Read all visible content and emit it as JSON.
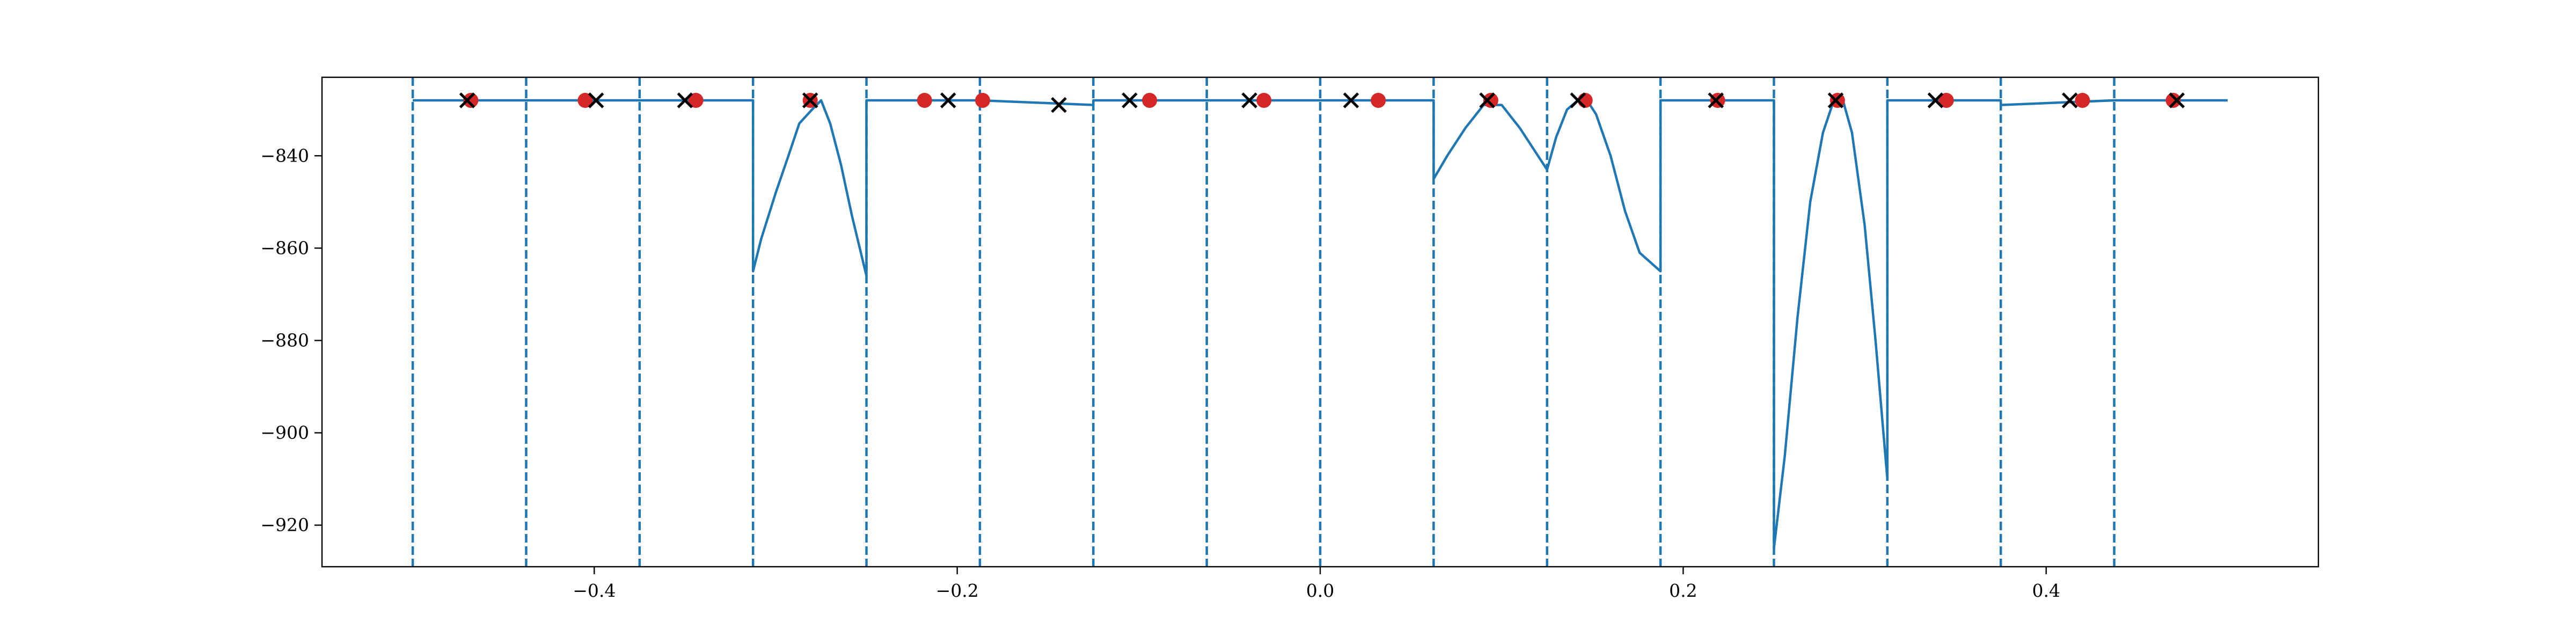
{
  "chart_data": {
    "type": "line",
    "title": "",
    "xlabel": "",
    "ylabel": "",
    "xlim": [
      -0.55,
      0.55
    ],
    "ylim": [
      -929,
      -823
    ],
    "grid": false,
    "xticks": [
      -0.4,
      -0.2,
      0.0,
      0.2,
      0.4
    ],
    "xtick_labels": [
      "−0.4",
      "−0.2",
      "0.0",
      "0.2",
      "0.4"
    ],
    "yticks": [
      -840,
      -860,
      -880,
      -900,
      -920
    ],
    "ytick_labels": [
      "−840",
      "−860",
      "−880",
      "−900",
      "−920"
    ],
    "series_color": "#1f77b4",
    "red_color": "#d62728",
    "cross_color": "#000000",
    "boundaries": [
      -0.5,
      -0.4375,
      -0.375,
      -0.3125,
      -0.25,
      -0.1875,
      -0.125,
      -0.0625,
      0.0,
      0.0625,
      0.125,
      0.1875,
      0.25,
      0.3125,
      0.375,
      0.4375
    ],
    "line": [
      [
        -0.5,
        -828
      ],
      [
        -0.3125,
        -828
      ],
      [
        -0.3125,
        -865
      ],
      [
        -0.308,
        -858
      ],
      [
        -0.3,
        -848
      ],
      [
        -0.293,
        -840
      ],
      [
        -0.287,
        -833
      ],
      [
        -0.28,
        -830
      ],
      [
        -0.275,
        -828
      ],
      [
        -0.27,
        -833
      ],
      [
        -0.264,
        -842
      ],
      [
        -0.258,
        -853
      ],
      [
        -0.25,
        -866
      ],
      [
        -0.25,
        -828
      ],
      [
        -0.1875,
        -828
      ],
      [
        -0.125,
        -829
      ],
      [
        -0.125,
        -828
      ],
      [
        0.0625,
        -828
      ],
      [
        0.0625,
        -845
      ],
      [
        0.07,
        -840
      ],
      [
        0.08,
        -834
      ],
      [
        0.09,
        -829
      ],
      [
        0.1,
        -829
      ],
      [
        0.11,
        -834
      ],
      [
        0.12,
        -840
      ],
      [
        0.125,
        -843
      ],
      [
        0.125,
        -843
      ],
      [
        0.13,
        -836
      ],
      [
        0.136,
        -830
      ],
      [
        0.142,
        -828
      ],
      [
        0.147,
        -828
      ],
      [
        0.152,
        -831
      ],
      [
        0.16,
        -840
      ],
      [
        0.168,
        -852
      ],
      [
        0.176,
        -861
      ],
      [
        0.1875,
        -865
      ],
      [
        0.1875,
        -828
      ],
      [
        0.25,
        -828
      ],
      [
        0.25,
        -925
      ],
      [
        0.256,
        -905
      ],
      [
        0.263,
        -875
      ],
      [
        0.27,
        -850
      ],
      [
        0.277,
        -835
      ],
      [
        0.283,
        -828
      ],
      [
        0.288,
        -828
      ],
      [
        0.293,
        -835
      ],
      [
        0.3,
        -855
      ],
      [
        0.306,
        -880
      ],
      [
        0.3125,
        -910
      ],
      [
        0.3125,
        -828
      ],
      [
        0.375,
        -828
      ],
      [
        0.375,
        -829
      ],
      [
        0.4375,
        -828
      ],
      [
        0.5,
        -828
      ]
    ],
    "red_points": [
      [
        -0.468,
        -828
      ],
      [
        -0.405,
        -828
      ],
      [
        -0.344,
        -828
      ],
      [
        -0.281,
        -828
      ],
      [
        -0.218,
        -828
      ],
      [
        -0.186,
        -828
      ],
      [
        -0.094,
        -828
      ],
      [
        -0.031,
        -828
      ],
      [
        0.032,
        -828
      ],
      [
        0.094,
        -828
      ],
      [
        0.146,
        -828
      ],
      [
        0.219,
        -828
      ],
      [
        0.285,
        -828
      ],
      [
        0.345,
        -828
      ],
      [
        0.42,
        -828
      ],
      [
        0.47,
        -828
      ]
    ],
    "crosses": [
      [
        -0.47,
        -828
      ],
      [
        -0.399,
        -828
      ],
      [
        -0.35,
        -828
      ],
      [
        -0.281,
        -828
      ],
      [
        -0.205,
        -828
      ],
      [
        -0.144,
        -829
      ],
      [
        -0.105,
        -828
      ],
      [
        -0.039,
        -828
      ],
      [
        0.017,
        -828
      ],
      [
        0.092,
        -828
      ],
      [
        0.142,
        -828
      ],
      [
        0.218,
        -828
      ],
      [
        0.284,
        -828
      ],
      [
        0.339,
        -828
      ],
      [
        0.413,
        -828
      ],
      [
        0.472,
        -828
      ]
    ]
  }
}
